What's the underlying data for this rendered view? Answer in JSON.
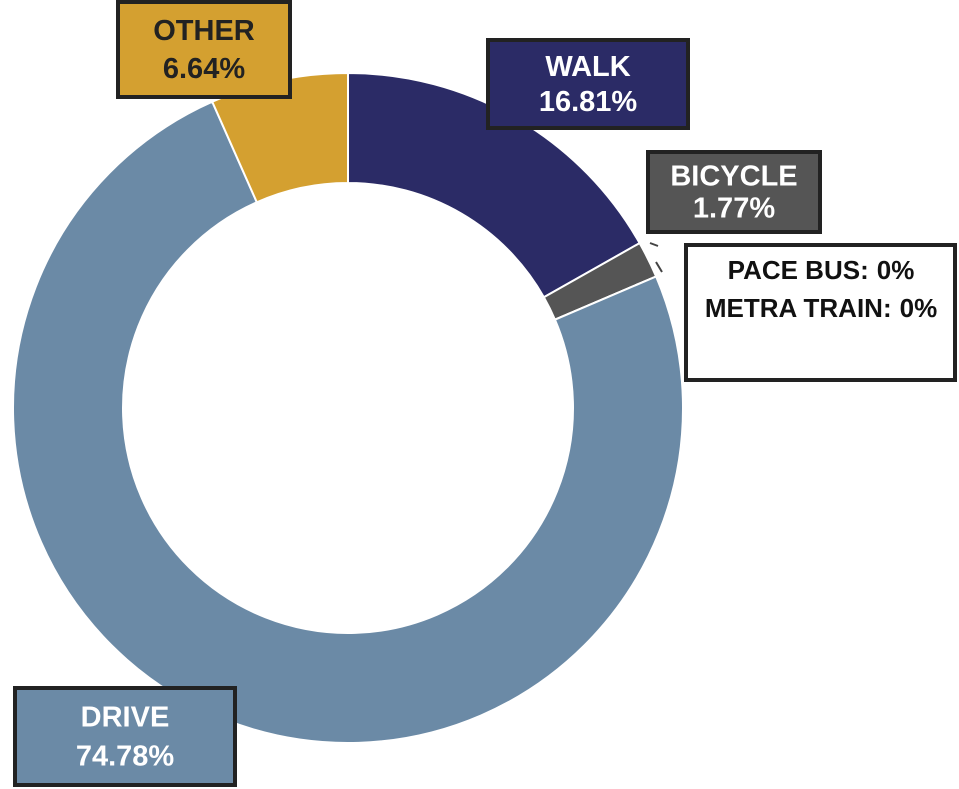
{
  "chart_data": {
    "type": "donut",
    "categories": [
      "WALK",
      "BICYCLE",
      "PACE BUS:",
      "METRA TRAIN:",
      "DRIVE",
      "OTHER"
    ],
    "values": [
      16.81,
      1.77,
      0,
      0,
      74.78,
      6.64
    ],
    "value_labels": [
      "16.81%",
      "1.77%",
      "0%",
      "0%",
      "74.78%",
      "6.64%"
    ],
    "colors": [
      "#2b2b66",
      "#555555",
      "#888888",
      "#888888",
      "#6b8aa6",
      "#d4a030"
    ]
  }
}
